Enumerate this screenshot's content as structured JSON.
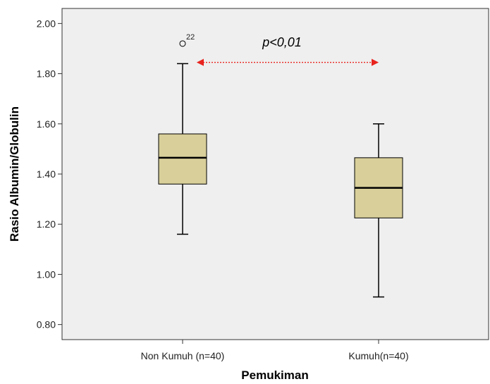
{
  "chart_data": {
    "type": "box",
    "xlabel": "Pemukiman",
    "ylabel": "Rasio Albumin/Globulin",
    "ylim": [
      0.74,
      2.06
    ],
    "yticks": [
      "0.80",
      "1.00",
      "1.20",
      "1.40",
      "1.60",
      "1.80",
      "2.00"
    ],
    "grid": false,
    "box_color": "#d8cf9a",
    "plot_background": "#efefef",
    "groups": [
      {
        "category": "Non Kumuh (n=40)",
        "min": 1.16,
        "q1": 1.36,
        "median": 1.465,
        "q3": 1.56,
        "max": 1.84,
        "outliers": [
          {
            "value": 1.92,
            "label": "22"
          }
        ]
      },
      {
        "category": "Kumuh(n=40)",
        "min": 0.91,
        "q1": 1.225,
        "median": 1.345,
        "q3": 1.465,
        "max": 1.6,
        "outliers": []
      }
    ],
    "annotation": {
      "text": "p<0,01",
      "arrow_color": "#e8231e",
      "arrow_y": 1.845
    }
  }
}
